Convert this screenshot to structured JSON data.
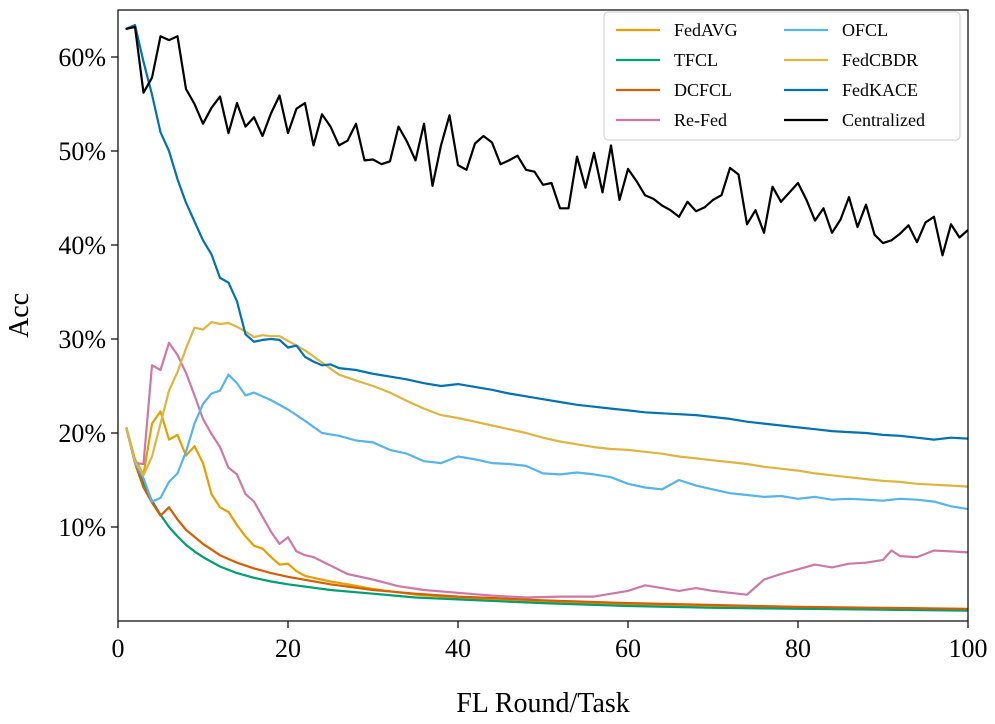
{
  "chart_data": {
    "type": "line",
    "title": "",
    "xlabel": "FL Round/Task",
    "ylabel": "Acc",
    "xlim": [
      0,
      100
    ],
    "ylim": [
      0,
      65
    ],
    "xticks": [
      0,
      20,
      40,
      60,
      80,
      100
    ],
    "xtick_labels": [
      "0",
      "20",
      "40",
      "60",
      "80",
      "100"
    ],
    "yticks": [
      10,
      20,
      30,
      40,
      50,
      60
    ],
    "ytick_labels": [
      "10%",
      "20%",
      "30%",
      "40%",
      "50%",
      "60%"
    ],
    "legend_position": "top-right",
    "legend_columns": 2,
    "series": [
      {
        "name": "FedAVG",
        "color": "#E69F00",
        "x": [
          1,
          2,
          3,
          4,
          5,
          6,
          7,
          8,
          9,
          10,
          11,
          12,
          13,
          14,
          15,
          16,
          17,
          18,
          19,
          20,
          21,
          22,
          23,
          25,
          27,
          30,
          35,
          40,
          45,
          50,
          60,
          70,
          80,
          90,
          100
        ],
        "values": [
          20.5,
          17.2,
          15.6,
          21.0,
          22.3,
          19.3,
          19.8,
          17.6,
          18.6,
          16.8,
          13.5,
          12.1,
          11.6,
          10.2,
          9.0,
          8.0,
          7.7,
          6.8,
          6.0,
          6.1,
          5.3,
          4.8,
          4.6,
          4.2,
          3.9,
          3.4,
          2.8,
          2.5,
          2.2,
          2.0,
          1.8,
          1.6,
          1.4,
          1.3,
          1.2
        ]
      },
      {
        "name": "TFCL",
        "color": "#009E73",
        "x": [
          1,
          2,
          3,
          4,
          5,
          6,
          7,
          8,
          9,
          10,
          12,
          14,
          16,
          18,
          20,
          25,
          30,
          35,
          40,
          45,
          50,
          60,
          70,
          80,
          90,
          100
        ],
        "values": [
          20.5,
          17.0,
          14.7,
          12.8,
          11.3,
          10.0,
          9.0,
          8.1,
          7.4,
          6.8,
          5.8,
          5.1,
          4.6,
          4.2,
          3.9,
          3.3,
          2.9,
          2.5,
          2.3,
          2.1,
          1.9,
          1.6,
          1.4,
          1.3,
          1.2,
          1.1
        ]
      },
      {
        "name": "DCFCL",
        "color": "#D55E00",
        "x": [
          1,
          2,
          3,
          4,
          5,
          6,
          7,
          8,
          10,
          12,
          14,
          16,
          18,
          20,
          25,
          30,
          35,
          40,
          45,
          50,
          60,
          70,
          80,
          90,
          100
        ],
        "values": [
          20.5,
          16.8,
          14.2,
          12.6,
          11.2,
          12.1,
          10.8,
          9.7,
          8.2,
          7.0,
          6.2,
          5.6,
          5.1,
          4.7,
          3.9,
          3.3,
          2.9,
          2.6,
          2.4,
          2.2,
          1.9,
          1.7,
          1.5,
          1.4,
          1.3
        ]
      },
      {
        "name": "Re-Fed",
        "color": "#CC79A7",
        "x": [
          1,
          2,
          3,
          4,
          5,
          6,
          7,
          8,
          9,
          10,
          11,
          12,
          13,
          14,
          15,
          16,
          17,
          18,
          19,
          20,
          21,
          22,
          23,
          25,
          27,
          30,
          33,
          36,
          40,
          44,
          48,
          52,
          56,
          58,
          60,
          62,
          64,
          66,
          68,
          70,
          72,
          74,
          76,
          78,
          80,
          82,
          84,
          86,
          88,
          90,
          91,
          92,
          94,
          96,
          98,
          100
        ],
        "values": [
          20.5,
          16.8,
          16.7,
          27.2,
          26.7,
          29.6,
          28.3,
          26.4,
          24.0,
          21.5,
          19.9,
          18.5,
          16.3,
          15.6,
          13.5,
          12.7,
          11.1,
          9.5,
          8.2,
          8.9,
          7.4,
          7.0,
          6.8,
          5.9,
          5.0,
          4.4,
          3.7,
          3.3,
          3.0,
          2.7,
          2.5,
          2.6,
          2.6,
          2.9,
          3.2,
          3.8,
          3.5,
          3.2,
          3.5,
          3.2,
          3.0,
          2.8,
          4.4,
          5.0,
          5.5,
          6.0,
          5.7,
          6.1,
          6.2,
          6.5,
          7.5,
          6.9,
          6.8,
          7.5,
          7.4,
          7.3
        ]
      },
      {
        "name": "OFCL",
        "color": "#56B4E9",
        "x": [
          1,
          2,
          3,
          4,
          5,
          6,
          7,
          8,
          9,
          10,
          11,
          12,
          13,
          14,
          15,
          16,
          18,
          20,
          22,
          24,
          26,
          28,
          30,
          32,
          34,
          36,
          38,
          40,
          42,
          44,
          46,
          48,
          50,
          52,
          54,
          56,
          58,
          60,
          62,
          64,
          66,
          68,
          70,
          72,
          74,
          76,
          78,
          80,
          82,
          84,
          86,
          88,
          90,
          92,
          94,
          96,
          98,
          100
        ],
        "values": [
          20.5,
          16.8,
          15.2,
          12.7,
          13.1,
          14.8,
          15.7,
          18.0,
          21.0,
          23.1,
          24.2,
          24.5,
          26.2,
          25.3,
          24.0,
          24.3,
          23.5,
          22.5,
          21.3,
          20.0,
          19.7,
          19.2,
          19.0,
          18.2,
          17.8,
          17.0,
          16.8,
          17.5,
          17.2,
          16.8,
          16.7,
          16.5,
          15.7,
          15.6,
          15.8,
          15.6,
          15.3,
          14.6,
          14.2,
          14.0,
          15.0,
          14.4,
          14.0,
          13.6,
          13.4,
          13.2,
          13.3,
          13.0,
          13.2,
          12.9,
          13.0,
          12.9,
          12.8,
          13.0,
          12.9,
          12.7,
          12.2,
          11.9
        ]
      },
      {
        "name": "FedCBDR",
        "color": "#DDB540",
        "x": [
          1,
          2,
          3,
          4,
          5,
          6,
          7,
          8,
          9,
          10,
          11,
          12,
          13,
          14,
          15,
          16,
          17,
          18,
          19,
          20,
          22,
          24,
          26,
          28,
          30,
          32,
          34,
          36,
          38,
          40,
          42,
          44,
          46,
          48,
          50,
          52,
          54,
          56,
          58,
          60,
          62,
          64,
          66,
          68,
          70,
          72,
          74,
          76,
          78,
          80,
          82,
          84,
          86,
          88,
          90,
          92,
          94,
          96,
          98,
          100
        ],
        "values": [
          20.5,
          17.0,
          15.5,
          17.5,
          21.0,
          24.5,
          26.5,
          29.0,
          31.2,
          31.0,
          31.8,
          31.6,
          31.7,
          31.3,
          30.8,
          30.2,
          30.4,
          30.3,
          30.3,
          29.8,
          28.8,
          27.5,
          26.2,
          25.6,
          25.0,
          24.3,
          23.4,
          22.6,
          21.9,
          21.6,
          21.2,
          20.8,
          20.4,
          20.0,
          19.5,
          19.1,
          18.8,
          18.5,
          18.3,
          18.2,
          18.0,
          17.8,
          17.5,
          17.3,
          17.1,
          16.9,
          16.7,
          16.4,
          16.2,
          16.0,
          15.7,
          15.5,
          15.3,
          15.1,
          14.9,
          14.8,
          14.6,
          14.5,
          14.4,
          14.3
        ]
      },
      {
        "name": "FedKACE",
        "color": "#0072B2",
        "x": [
          1,
          2,
          3,
          4,
          5,
          6,
          7,
          8,
          9,
          10,
          11,
          12,
          13,
          14,
          15,
          16,
          17,
          18,
          19,
          20,
          21,
          22,
          23,
          24,
          25,
          26,
          28,
          30,
          32,
          34,
          36,
          38,
          40,
          42,
          44,
          46,
          48,
          50,
          52,
          54,
          56,
          58,
          60,
          62,
          64,
          66,
          68,
          70,
          72,
          74,
          76,
          78,
          80,
          82,
          84,
          86,
          88,
          90,
          92,
          94,
          96,
          98,
          100
        ],
        "values": [
          63.0,
          63.4,
          59.5,
          56.0,
          52.0,
          50.0,
          47.0,
          44.5,
          42.5,
          40.5,
          39.0,
          36.5,
          36.0,
          34.0,
          30.5,
          29.7,
          29.9,
          30.0,
          29.9,
          29.1,
          29.3,
          28.1,
          27.6,
          27.2,
          27.3,
          26.9,
          26.7,
          26.3,
          26.0,
          25.7,
          25.3,
          25.0,
          25.2,
          24.9,
          24.6,
          24.2,
          23.9,
          23.6,
          23.3,
          23.0,
          22.8,
          22.6,
          22.4,
          22.2,
          22.1,
          22.0,
          21.9,
          21.7,
          21.5,
          21.2,
          21.0,
          20.8,
          20.6,
          20.4,
          20.2,
          20.1,
          20.0,
          19.8,
          19.7,
          19.5,
          19.3,
          19.5,
          19.4
        ]
      },
      {
        "name": "Centralized",
        "color": "#000000",
        "x": [
          1,
          2,
          3,
          4,
          5,
          6,
          7,
          8,
          9,
          10,
          11,
          12,
          13,
          14,
          15,
          16,
          17,
          18,
          19,
          20,
          21,
          22,
          23,
          24,
          25,
          26,
          27,
          28,
          29,
          30,
          31,
          32,
          33,
          34,
          35,
          36,
          37,
          38,
          39,
          40,
          41,
          42,
          43,
          44,
          45,
          46,
          47,
          48,
          49,
          50,
          51,
          52,
          53,
          54,
          55,
          56,
          57,
          58,
          59,
          60,
          61,
          62,
          63,
          64,
          65,
          66,
          67,
          68,
          69,
          70,
          71,
          72,
          73,
          74,
          75,
          76,
          77,
          78,
          79,
          80,
          81,
          82,
          83,
          84,
          85,
          86,
          87,
          88,
          89,
          90,
          91,
          92,
          93,
          94,
          95,
          96,
          97,
          98,
          99,
          100
        ],
        "values": [
          63.0,
          63.2,
          56.2,
          57.8,
          62.2,
          61.8,
          62.2,
          56.6,
          55.0,
          52.9,
          54.6,
          55.8,
          51.9,
          55.1,
          52.6,
          53.6,
          51.6,
          54.0,
          55.9,
          51.9,
          54.5,
          55.1,
          50.6,
          53.9,
          52.6,
          50.6,
          51.1,
          52.9,
          49.0,
          49.1,
          48.6,
          48.9,
          52.6,
          51.0,
          49.0,
          52.9,
          46.3,
          50.6,
          53.8,
          48.5,
          48.0,
          50.8,
          51.6,
          50.9,
          48.6,
          49.0,
          49.5,
          48.0,
          47.8,
          46.4,
          46.6,
          43.9,
          43.9,
          49.4,
          46.1,
          49.8,
          45.6,
          50.6,
          44.8,
          48.1,
          46.8,
          45.3,
          44.9,
          44.2,
          43.7,
          43.0,
          44.6,
          43.6,
          44.0,
          44.8,
          45.3,
          48.2,
          47.5,
          42.2,
          43.7,
          41.3,
          46.2,
          44.6,
          45.6,
          46.6,
          44.8,
          42.6,
          43.9,
          41.3,
          42.7,
          45.1,
          41.9,
          44.3,
          41.1,
          40.2,
          40.5,
          41.2,
          42.1,
          40.3,
          42.4,
          43.0,
          38.9,
          42.2,
          40.8,
          41.6
        ]
      }
    ]
  }
}
